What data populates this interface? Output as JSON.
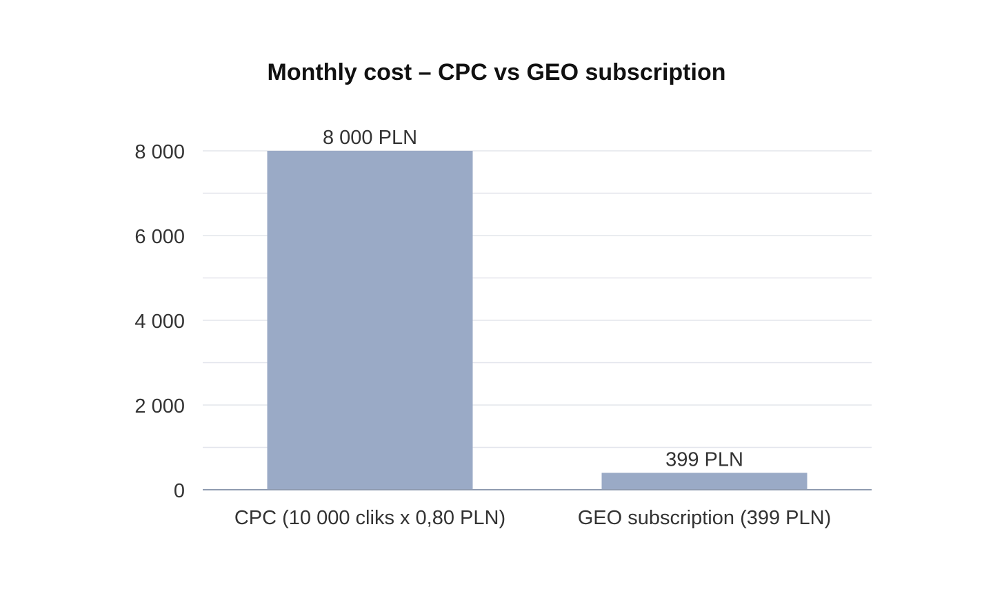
{
  "chart_data": {
    "type": "bar",
    "title": "Monthly cost – CPC vs GEO subscription",
    "categories": [
      "CPC (10 000 cliks x 0,80 PLN)",
      "GEO subscription (399 PLN)"
    ],
    "values": [
      8000,
      399
    ],
    "data_labels": [
      "8 000 PLN",
      "399 PLN"
    ],
    "xlabel": "",
    "ylabel": "",
    "ylim": [
      0,
      8000
    ],
    "yticks": [
      0,
      2000,
      4000,
      6000,
      8000
    ],
    "ytick_labels": [
      "0",
      "2 000",
      "4 000",
      "6 000",
      "8 000"
    ],
    "grid": true,
    "legend": "none",
    "colors": {
      "bar": "#9aaac6",
      "grid": "#e3e5ec",
      "axis": "#8f9bb0"
    }
  }
}
